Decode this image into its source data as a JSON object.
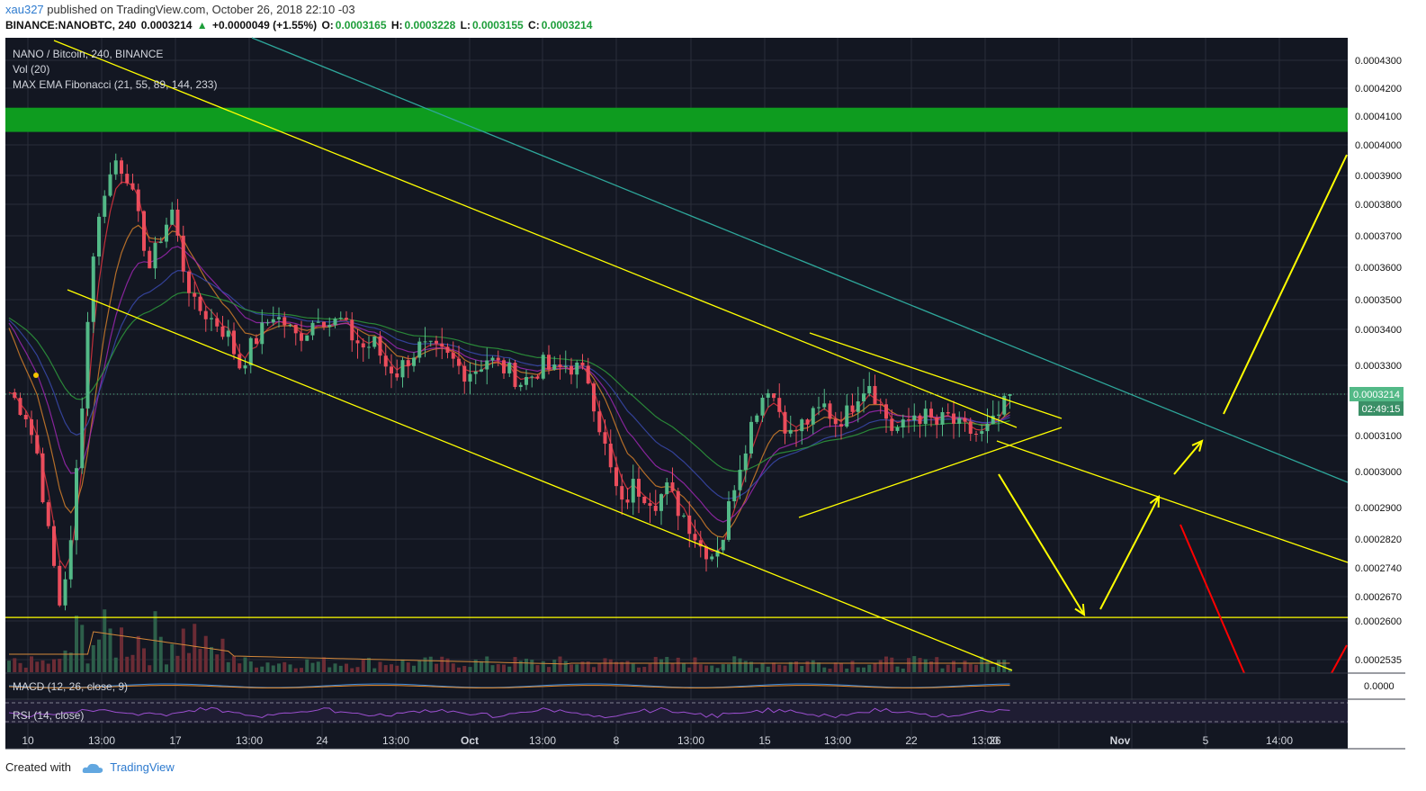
{
  "header": {
    "user": "xau327",
    "published": "published on TradingView.com, October 26, 2018 22:10 -03",
    "symbol_line": "BINANCE:NANOBTC, 240",
    "last": "0.0003214",
    "change": "+0.0000049 (+1.55%)",
    "o_label": "O:",
    "o_val": "0.0003165",
    "h_label": "H:",
    "h_val": "0.0003228",
    "l_label": "L:",
    "l_val": "0.0003155",
    "c_label": "C:",
    "c_val": "0.0003214"
  },
  "legend": {
    "title": "NANO / Bitcoin, 240, BINANCE",
    "vol": "Vol (20)",
    "ema": "MAX EMA Fibonacci (21, 55, 89, 144, 233)",
    "macd": "MACD (12, 26, close, 9)",
    "rsi": "RSI (14, close)"
  },
  "price_badge": {
    "value": "0.0003214",
    "countdown": "02:49:15"
  },
  "footer": {
    "created_with": "Created with",
    "brand": "TradingView"
  },
  "colors": {
    "background": "#131722",
    "grid": "#2a2e39",
    "up": "#53b987",
    "down": "#eb4d5c",
    "trendline": "#ffff00",
    "resistance_zone": "#0e9c1f",
    "teal_line": "#2ea69a",
    "red_arrow": "#ff0000"
  },
  "chart_data": {
    "type": "candlestick",
    "title": "NANO / Bitcoin, 240, BINANCE",
    "x_ticks": [
      "10",
      "13:00",
      "17",
      "13:00",
      "24",
      "13:00",
      "Oct",
      "13:00",
      "8",
      "13:00",
      "15",
      "13:00",
      "22",
      "13:00",
      "26",
      "Nov",
      "5",
      "14:00"
    ],
    "y_ticks": [
      "0.0004300",
      "0.0004200",
      "0.0004100",
      "0.0004000",
      "0.0003900",
      "0.0003800",
      "0.0003700",
      "0.0003600",
      "0.0003500",
      "0.0003400",
      "0.0003300",
      "0.0003100",
      "0.0003000",
      "0.0002900",
      "0.0002820",
      "0.0002740",
      "0.0002670",
      "0.0002600",
      "0.0002535"
    ],
    "macd_tick": "0.0000",
    "last_price": 0.0003214,
    "resistance_zone": [
      0.0004045,
      0.000413
    ],
    "support_level": 0.000261,
    "close_path": [
      [
        0,
        0.000322
      ],
      [
        3,
        0.000316
      ],
      [
        5,
        0.000305
      ],
      [
        7,
        0.000283
      ],
      [
        9,
        0.000265
      ],
      [
        11,
        0.00028
      ],
      [
        13,
        0.00032
      ],
      [
        15,
        0.000365
      ],
      [
        17,
        0.000385
      ],
      [
        19,
        0.000395
      ],
      [
        21,
        0.00039
      ],
      [
        23,
        0.000375
      ],
      [
        25,
        0.00036
      ],
      [
        27,
        0.00037
      ],
      [
        29,
        0.000378
      ],
      [
        31,
        0.00036
      ],
      [
        33,
        0.000348
      ],
      [
        35,
        0.000345
      ],
      [
        37,
        0.000342
      ],
      [
        39,
        0.000338
      ],
      [
        41,
        0.00033
      ],
      [
        43,
        0.000335
      ],
      [
        45,
        0.00034
      ],
      [
        47,
        0.000345
      ],
      [
        49,
        0.000342
      ],
      [
        51,
        0.000338
      ],
      [
        53,
        0.00034
      ],
      [
        55,
        0.000345
      ],
      [
        57,
        0.000342
      ],
      [
        59,
        0.000343
      ],
      [
        61,
        0.000338
      ],
      [
        63,
        0.000335
      ],
      [
        65,
        0.000336
      ],
      [
        67,
        0.00033
      ],
      [
        69,
        0.000328
      ],
      [
        71,
        0.000332
      ],
      [
        73,
        0.000335
      ],
      [
        75,
        0.000334
      ],
      [
        77,
        0.000333
      ],
      [
        79,
        0.000331
      ],
      [
        81,
        0.000328
      ],
      [
        83,
        0.000329
      ],
      [
        85,
        0.000332
      ],
      [
        87,
        0.00033
      ],
      [
        89,
        0.000328
      ],
      [
        91,
        0.000325
      ],
      [
        93,
        0.000327
      ],
      [
        95,
        0.00033
      ],
      [
        97,
        0.000328
      ],
      [
        99,
        0.00033
      ],
      [
        101,
        0.000329
      ],
      [
        103,
        0.000326
      ],
      [
        105,
        0.000313
      ],
      [
        107,
        0.0003
      ],
      [
        109,
        0.00029
      ],
      [
        111,
        0.000296
      ],
      [
        113,
        0.000294
      ],
      [
        115,
        0.000292
      ],
      [
        117,
        0.000295
      ],
      [
        119,
        0.00029
      ],
      [
        121,
        0.000286
      ],
      [
        123,
        0.00028
      ],
      [
        125,
        0.000278
      ],
      [
        127,
        0.000283
      ],
      [
        129,
        0.000297
      ],
      [
        131,
        0.000308
      ],
      [
        133,
        0.000318
      ],
      [
        135,
        0.000324
      ],
      [
        137,
        0.000317
      ],
      [
        139,
        0.00031
      ],
      [
        141,
        0.000313
      ],
      [
        143,
        0.000315
      ],
      [
        145,
        0.000318
      ],
      [
        147,
        0.000314
      ],
      [
        149,
        0.000316
      ],
      [
        151,
        0.000322
      ],
      [
        153,
        0.000325
      ],
      [
        155,
        0.000318
      ],
      [
        157,
        0.000312
      ],
      [
        159,
        0.000312
      ],
      [
        161,
        0.000316
      ],
      [
        163,
        0.000315
      ],
      [
        165,
        0.000313
      ],
      [
        167,
        0.000315
      ],
      [
        169,
        0.000312
      ],
      [
        171,
        0.000311
      ],
      [
        173,
        0.00031
      ],
      [
        175,
        0.000313
      ],
      [
        177,
        0.000318
      ],
      [
        178,
        0.0003214
      ]
    ],
    "annotations": [
      "descending channel",
      "symmetrical triangle",
      "resistance zone",
      "support line",
      "projected path arrows"
    ]
  }
}
